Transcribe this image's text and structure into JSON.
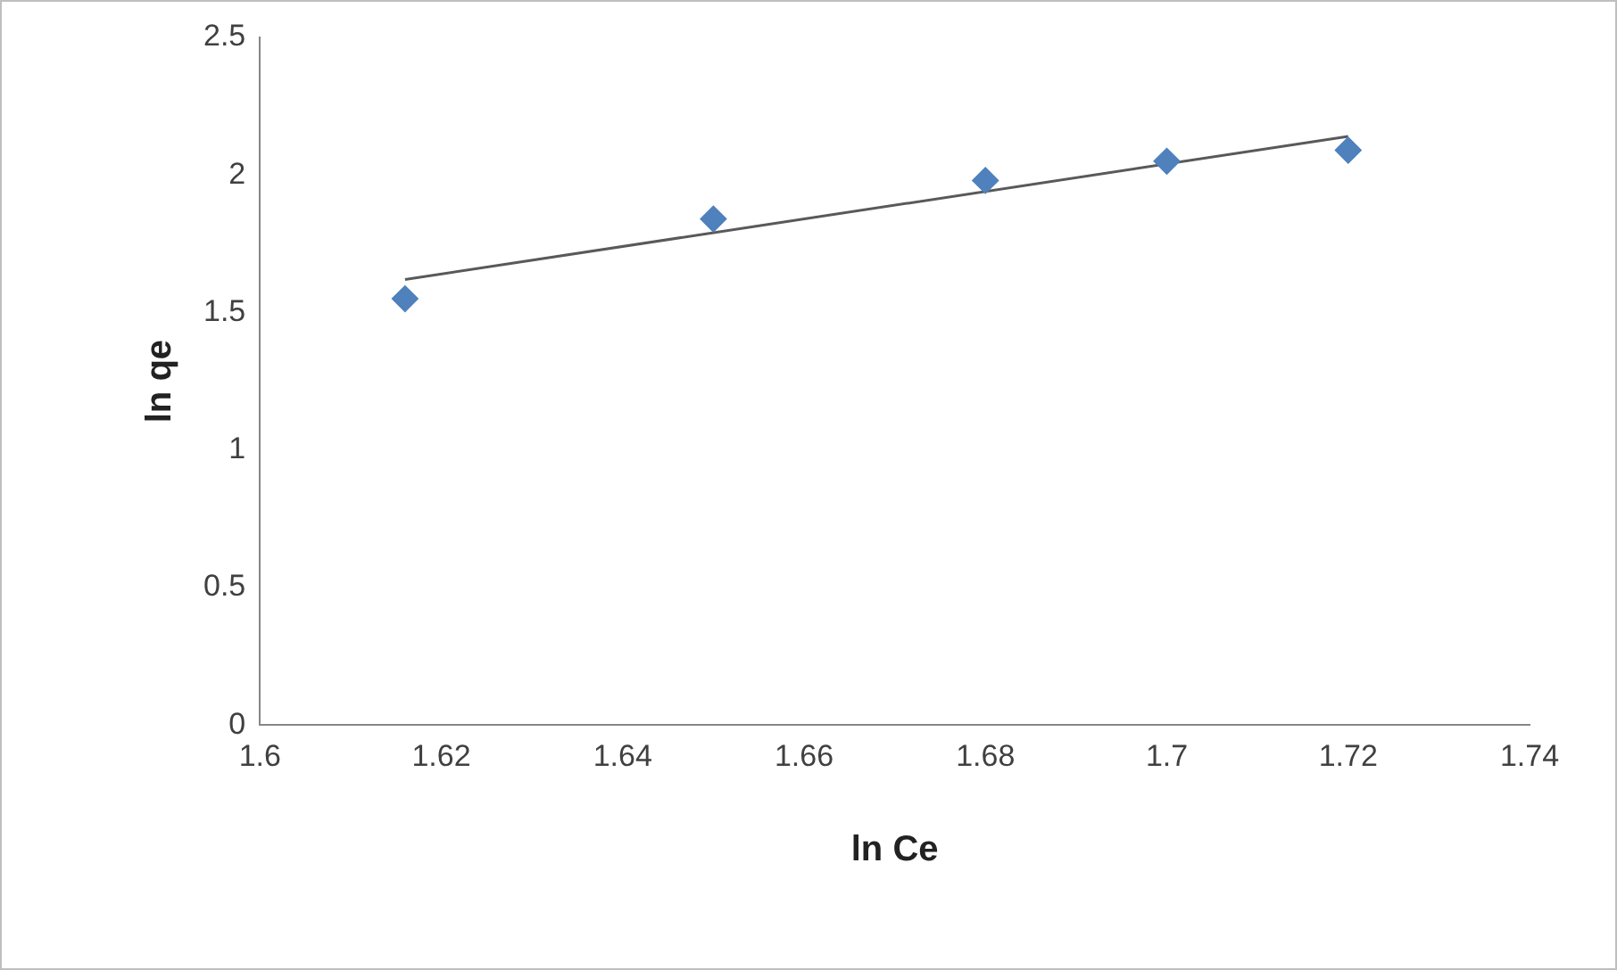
{
  "chart_data": {
    "type": "scatter",
    "xlabel": "ln Ce",
    "ylabel": "ln qe",
    "xlim": [
      1.6,
      1.74
    ],
    "xticks": [
      1.6,
      1.62,
      1.64,
      1.66,
      1.68,
      1.7,
      1.72,
      1.74
    ],
    "ylim": [
      0,
      2.5
    ],
    "yticks": [
      0,
      0.5,
      1,
      1.5,
      2,
      2.5
    ],
    "grid": false,
    "legend": false,
    "marker": "diamond",
    "series": [
      {
        "type": "scatter",
        "color": "#4f81bd",
        "x": [
          1.616,
          1.65,
          1.68,
          1.7,
          1.72
        ],
        "values": [
          1.55,
          1.84,
          1.98,
          2.05,
          2.09
        ]
      },
      {
        "type": "line",
        "color": "#595959",
        "marker": "none",
        "x": [
          1.616,
          1.72
        ],
        "values": [
          1.62,
          2.14
        ]
      }
    ]
  }
}
